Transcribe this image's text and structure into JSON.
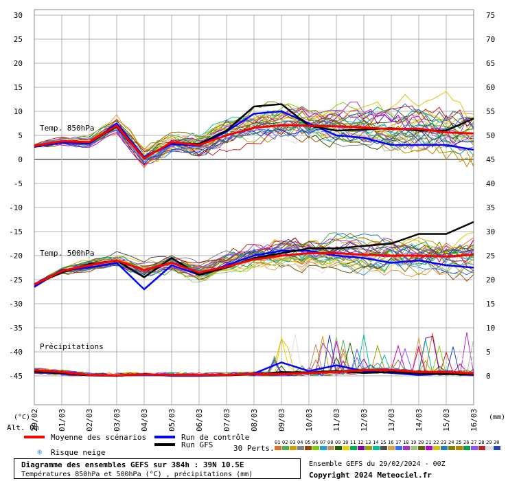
{
  "chart_data": {
    "type": "line",
    "x_dates": [
      "29/02",
      "01/03",
      "02/03",
      "03/03",
      "04/03",
      "05/03",
      "06/03",
      "07/03",
      "08/03",
      "09/03",
      "10/03",
      "11/03",
      "12/03",
      "13/03",
      "14/03",
      "15/03",
      "16/03"
    ],
    "y_left_unit": "(°C)",
    "y_right_unit": "(mm)",
    "y_left_ticks": [
      30,
      25,
      20,
      15,
      10,
      5,
      0,
      -5,
      -10,
      -15,
      -20,
      -25,
      -30,
      -35,
      -40,
      -45
    ],
    "y_right_ticks": [
      75,
      70,
      65,
      60,
      55,
      50,
      45,
      40,
      35,
      30,
      25,
      20,
      15,
      10,
      5,
      0
    ],
    "ylim_left": [
      -45,
      30
    ],
    "alt_label": "Alt. 0m",
    "section_labels": {
      "t850": "Temp. 850hPa",
      "t500": "Temp. 500hPa",
      "precip": "Précipitations"
    },
    "series": [
      {
        "name": "Moyenne des scénarios",
        "color": "#ff0000",
        "t850": [
          2.8,
          3.8,
          3.6,
          7.0,
          0.2,
          3.6,
          3.0,
          5.0,
          6.6,
          7.1,
          7.0,
          6.9,
          6.6,
          6.3,
          6.4,
          5.6,
          5.4
        ],
        "t500": [
          -26.0,
          -23.2,
          -22.0,
          -21.0,
          -23.0,
          -21.5,
          -23.5,
          -22.3,
          -20.8,
          -20.0,
          -19.5,
          -19.5,
          -19.8,
          -20.0,
          -20.0,
          -20.2,
          -19.8
        ],
        "precip": [
          1.2,
          0.8,
          0.2,
          0.1,
          0.3,
          0.2,
          0.2,
          0.2,
          0.4,
          0.4,
          0.6,
          0.8,
          1.2,
          1.2,
          0.8,
          0.8,
          0.5
        ]
      },
      {
        "name": "Run de contrôle",
        "color": "#0000ff",
        "t850": [
          2.6,
          3.5,
          3.3,
          7.5,
          0.5,
          3.2,
          2.8,
          5.8,
          9.5,
          10.0,
          7.5,
          5.0,
          4.5,
          3.0,
          3.0,
          3.0,
          2.0
        ],
        "t500": [
          -26.5,
          -23.0,
          -22.5,
          -21.5,
          -27.0,
          -22.0,
          -24.0,
          -22.0,
          -20.0,
          -19.0,
          -19.0,
          -20.0,
          -20.5,
          -21.5,
          -21.0,
          -22.0,
          -22.5
        ],
        "precip": [
          0.8,
          0.5,
          0.1,
          0.0,
          0.4,
          0.0,
          0.0,
          0.1,
          0.5,
          2.8,
          1.0,
          2.2,
          1.0,
          0.6,
          0.2,
          0.5,
          0.2
        ]
      },
      {
        "name": "Run GFS",
        "color": "#000000",
        "t850": [
          2.7,
          3.8,
          3.5,
          6.8,
          0.3,
          3.5,
          3.2,
          6.0,
          11.0,
          11.5,
          7.0,
          6.0,
          6.2,
          6.5,
          6.0,
          6.0,
          8.5
        ],
        "t500": [
          -26.0,
          -23.5,
          -21.8,
          -21.0,
          -24.5,
          -20.5,
          -24.0,
          -22.5,
          -20.5,
          -19.5,
          -18.5,
          -18.5,
          -18.0,
          -17.5,
          -15.5,
          -15.5,
          -13.0
        ],
        "precip": [
          0.9,
          0.6,
          0.1,
          0.0,
          0.3,
          0.1,
          0.1,
          0.1,
          0.3,
          0.8,
          0.7,
          1.0,
          0.6,
          0.8,
          0.5,
          0.4,
          0.3
        ]
      }
    ],
    "ensemble_members": 30,
    "snow_risk_label": "Risque neige",
    "legend": {
      "mean": "Moyenne des scénarios",
      "control": "Run de contrôle",
      "gfs": "Run GFS",
      "perts_label": "30 Perts.",
      "perts_numbers": [
        "01",
        "02",
        "03",
        "04",
        "05",
        "06",
        "07",
        "08",
        "09",
        "10",
        "11",
        "12",
        "13",
        "14",
        "15",
        "16",
        "17",
        "18",
        "19",
        "20",
        "21",
        "22",
        "23",
        "24",
        "25",
        "26",
        "27",
        "28",
        "29",
        "30"
      ],
      "perts_colors": [
        "#e07020",
        "#50b050",
        "#d0a000",
        "#808080",
        "#a04000",
        "#80d000",
        "#20a0d0",
        "#c09060",
        "#206000",
        "#f0d000",
        "#00b050",
        "#8000a0",
        "#a0a000",
        "#00c0a0",
        "#505050",
        "#e0a040",
        "#3070ff",
        "#b030c0",
        "#a0c080",
        "#606000",
        "#c000c0",
        "#e0c000",
        "#2080c0",
        "#808000",
        "#c08000",
        "#00a040",
        "#9050ff",
        "#c02020",
        "#e0e0e0",
        "#2040c0"
      ]
    },
    "colors": {
      "grid": "#b0b0b0",
      "zero_line": "#808080",
      "mean": "#ff0000",
      "control": "#0000ff",
      "gfs": "#000000",
      "snow": "#40a0ff"
    }
  },
  "footer": {
    "title": "Diagramme des ensembles GEFS sur 384h : 39N 10.5E",
    "subtitle": "Températures 850hPa et 500hPa (°C) , précipitations (mm)",
    "run_info": "Ensemble GEFS du 29/02/2024 - 00Z",
    "copyright": "Copyright 2024 Meteociel.fr"
  }
}
